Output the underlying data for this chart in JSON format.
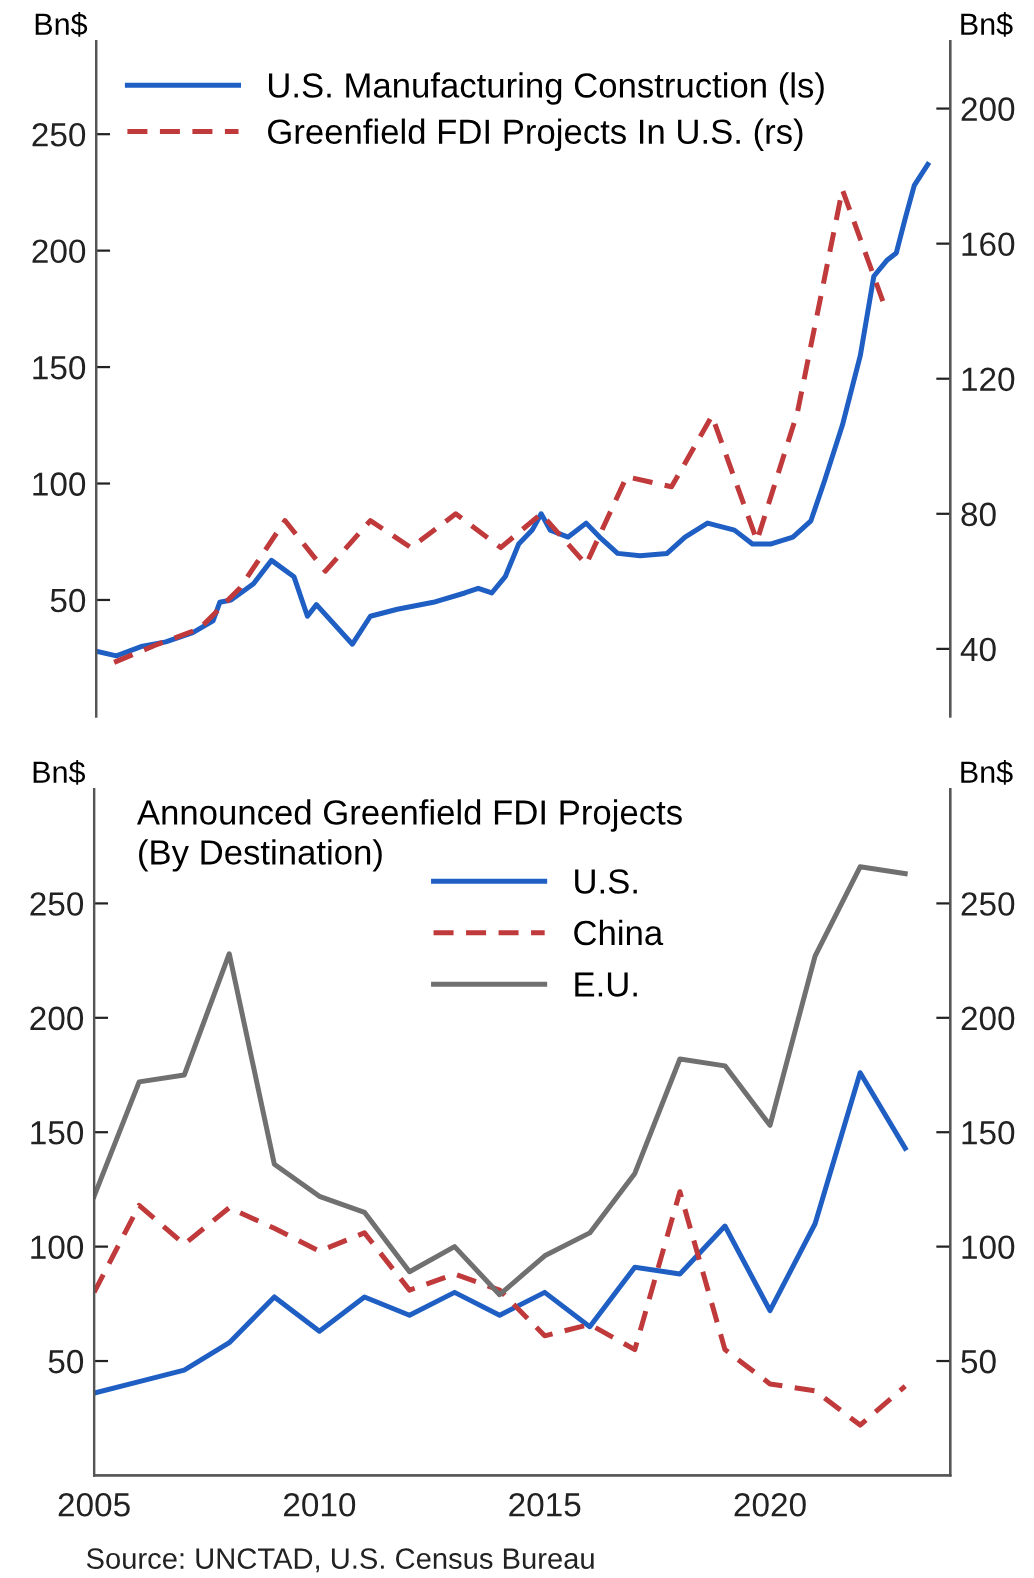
{
  "chart_data": [
    {
      "type": "line",
      "ylabel": "Bn$",
      "y2label": "Bn$",
      "xlim": [
        2005,
        2024
      ],
      "ylim": [
        0,
        290
      ],
      "yticks": [
        50,
        100,
        150,
        200,
        250
      ],
      "y2lim": [
        20,
        220
      ],
      "y2ticks": [
        40,
        80,
        120,
        160,
        200
      ],
      "tick_labels": "y",
      "legend": "top left",
      "series": [
        {
          "name": "U.S. Manufacturing Construction (ls)",
          "color": "#1f5fc4",
          "line_style": "solid",
          "x": [
            2005.0,
            2005.45,
            2006.0,
            2006.55,
            2007.15,
            2007.6,
            2007.75,
            2008.0,
            2008.5,
            2008.9,
            2009.4,
            2009.7,
            2009.9,
            2010.7,
            2011.1,
            2011.7,
            2012.5,
            2013.2,
            2013.5,
            2013.8,
            2014.1,
            2014.4,
            2014.7,
            2014.9,
            2015.1,
            2015.5,
            2015.9,
            2016.2,
            2016.6,
            2017.1,
            2017.7,
            2018.1,
            2018.6,
            2019.2,
            2019.6,
            2020.0,
            2020.5,
            2020.9,
            2021.2,
            2021.6,
            2022.0,
            2022.3,
            2022.6,
            2022.8,
            2023.0,
            2023.2,
            2023.5
          ],
          "values": [
            28,
            26,
            30,
            32,
            36,
            41,
            49,
            50,
            57,
            67,
            60,
            43,
            48,
            31,
            43,
            46,
            49,
            53,
            55,
            53,
            60,
            74,
            80,
            87,
            80,
            77,
            83,
            77,
            70,
            69,
            70,
            77,
            83,
            80,
            74,
            74,
            77,
            84,
            101,
            125,
            155,
            189,
            196,
            199,
            214,
            228,
            237
          ]
        },
        {
          "name": "Greenfield FDI Projects In U.S. (rs)",
          "color": "#c0393b",
          "line_style": "dashed",
          "axis": "y2",
          "x": [
            2005.4,
            2006.3,
            2007.3,
            2008.2,
            2009.2,
            2010.1,
            2011.1,
            2012.0,
            2013.0,
            2014.0,
            2014.9,
            2015.9,
            2016.8,
            2017.8,
            2018.7,
            2019.7,
            2020.6,
            2021.6,
            2022.5
          ],
          "values": [
            36,
            41,
            46,
            58,
            78,
            63,
            78,
            70,
            80,
            70,
            80,
            65,
            91,
            88,
            109,
            72,
            110,
            176,
            143
          ]
        }
      ]
    },
    {
      "type": "line",
      "title": "Announced Greenfield FDI Projects\n(By Destination)",
      "ylabel": "Bn$",
      "y2label": "Bn$",
      "xlim": [
        2005,
        2024
      ],
      "xticks": [
        2005,
        2010,
        2015,
        2020
      ],
      "ylim": [
        0,
        300
      ],
      "yticks": [
        50,
        100,
        150,
        200,
        250
      ],
      "y2lim": [
        0,
        300
      ],
      "y2ticks": [
        50,
        100,
        150,
        200,
        250
      ],
      "legend": "top",
      "x": [
        2005,
        2006,
        2007,
        2008,
        2009,
        2010,
        2011,
        2012,
        2013,
        2014,
        2015,
        2016,
        2017,
        2018,
        2019,
        2020,
        2021,
        2022,
        2023
      ],
      "series": [
        {
          "name": "U.S.",
          "color": "#1f5fc4",
          "line_style": "solid",
          "values": [
            36,
            41,
            46,
            58,
            78,
            63,
            78,
            70,
            80,
            70,
            80,
            65,
            91,
            88,
            109,
            72,
            110,
            176,
            143
          ]
        },
        {
          "name": "China",
          "color": "#c0393b",
          "line_style": "dashed",
          "values": [
            80,
            118,
            101,
            117,
            108,
            98,
            106,
            81,
            88,
            81,
            61,
            66,
            55,
            124,
            55,
            40,
            37,
            22,
            39
          ]
        },
        {
          "name": "E.U.",
          "color": "#707070",
          "line_style": "solid",
          "values": [
            122,
            172,
            175,
            228,
            136,
            122,
            115,
            89,
            100,
            79,
            96,
            106,
            132,
            182,
            179,
            153,
            227,
            266,
            263
          ]
        }
      ],
      "annotations": [
        "Source: UNCTAD, U.S. Census Bureau"
      ]
    }
  ]
}
